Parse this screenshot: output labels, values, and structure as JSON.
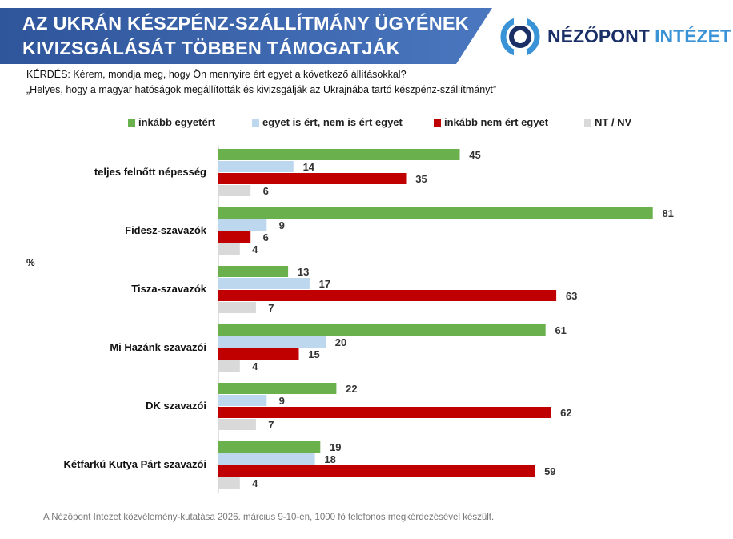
{
  "header": {
    "title_line1": "AZ UKRÁN KÉSZPÉNZ-SZÁLLÍTMÁNY ÜGYÉNEK",
    "title_line2": "KIVIZSGÁLÁSÁT TÖBBEN TÁMOGATJÁK",
    "banner_color": "#3560a7",
    "logo_text_dark": "NÉZŐPONT",
    "logo_text_light": "INTÉZET",
    "logo_icon": "nezopont-logo-icon"
  },
  "question": {
    "line1": "KÉRDÉS: Kérem, mondja meg, hogy Ön mennyire ért egyet a következő állításokkal?",
    "line2": "„Helyes, hogy a magyar hatóságok megállították és kivizsgálják az Ukrajnába tartó készpénz-szállítmányt”"
  },
  "footer": "A Nézőpont Intézet közvélemény-kutatása 2026. március 9-10-én, 1000 fő telefonos megkérdezésével készült.",
  "chart_data": {
    "type": "bar",
    "orientation": "horizontal",
    "unit_label": "%",
    "categories": [
      "teljes felnőtt népesség",
      "Fidesz-szavazók",
      "Tisza-szavazók",
      "Mi Hazánk szavazói",
      "DK szavazói",
      "Kétfarkú Kutya Párt szavazói"
    ],
    "series": [
      {
        "name": "inkább egyetért",
        "color": "#6ab04c",
        "values": [
          45,
          81,
          13,
          61,
          22,
          19
        ]
      },
      {
        "name": "egyet is ért, nem is ért egyet",
        "color": "#bdd7ee",
        "values": [
          14,
          9,
          17,
          20,
          9,
          18
        ]
      },
      {
        "name": "inkább nem ért egyet",
        "color": "#c00000",
        "values": [
          35,
          6,
          63,
          15,
          62,
          59
        ]
      },
      {
        "name": "NT / NV",
        "color": "#d9d9d9",
        "values": [
          6,
          4,
          7,
          4,
          7,
          4
        ]
      }
    ],
    "xlim": [
      0,
      100
    ],
    "grid": false,
    "legend_position": "top"
  }
}
